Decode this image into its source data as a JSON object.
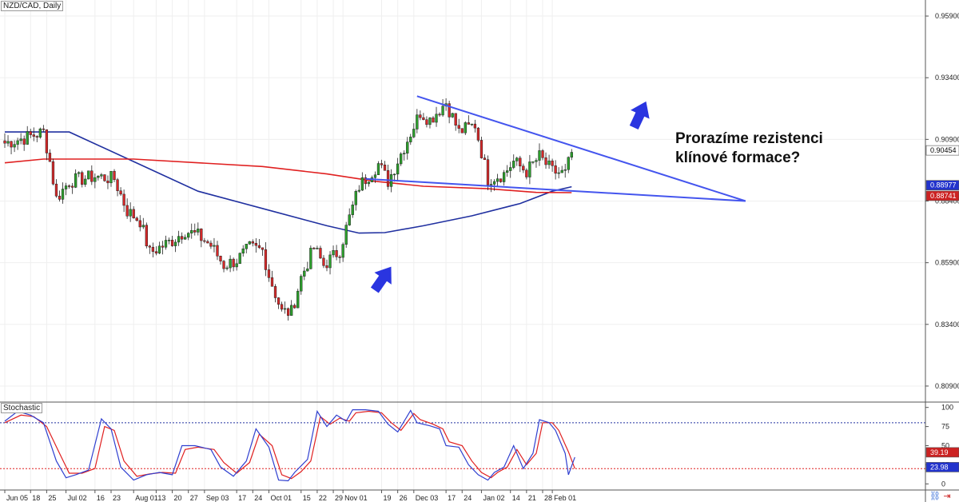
{
  "chart_data": {
    "type": "candlestick",
    "title": "NZD/CAD, Daily",
    "price_axis": {
      "ylim": [
        0.8025,
        0.9655
      ],
      "ticks": [
        "0.95900",
        "0.93400",
        "0.90900",
        "0.88400",
        "0.85900",
        "0.83400",
        "0.80900"
      ],
      "tick_values": [
        0.959,
        0.934,
        0.909,
        0.884,
        0.859,
        0.834,
        0.809
      ]
    },
    "time_axis": {
      "labels": [
        "Jun 05",
        "18",
        "25",
        "Jul 02",
        "16",
        "23",
        "Aug 01",
        "13",
        "20",
        "27",
        "Sep 03",
        "17",
        "24",
        "Oct 01",
        "15",
        "22",
        "29",
        "Nov 01",
        "19",
        "26",
        "Dec 03",
        "17",
        "24",
        "Jan 02",
        "14",
        "21",
        "28",
        "Feb 01"
      ],
      "label_bar_index": [
        0,
        8,
        13,
        19,
        28,
        33,
        40,
        47,
        52,
        57,
        62,
        72,
        77,
        82,
        92,
        97,
        102,
        105,
        117,
        122,
        127,
        137,
        142,
        148,
        157,
        162,
        167,
        170
      ]
    },
    "close_path": [
      [
        0,
        0.9075
      ],
      [
        6,
        0.9095
      ],
      [
        12,
        0.912
      ],
      [
        14,
        0.9
      ],
      [
        16,
        0.885
      ],
      [
        20,
        0.892
      ],
      [
        28,
        0.894
      ],
      [
        34,
        0.893
      ],
      [
        38,
        0.88
      ],
      [
        42,
        0.876
      ],
      [
        45,
        0.863
      ],
      [
        52,
        0.868
      ],
      [
        56,
        0.872
      ],
      [
        60,
        0.87
      ],
      [
        64,
        0.866
      ],
      [
        68,
        0.858
      ],
      [
        72,
        0.86
      ],
      [
        76,
        0.865
      ],
      [
        80,
        0.864
      ],
      [
        82,
        0.854
      ],
      [
        86,
        0.839
      ],
      [
        89,
        0.839
      ],
      [
        92,
        0.853
      ],
      [
        96,
        0.865
      ],
      [
        99,
        0.858
      ],
      [
        104,
        0.864
      ],
      [
        106,
        0.873
      ],
      [
        110,
        0.89
      ],
      [
        116,
        0.899
      ],
      [
        119,
        0.892
      ],
      [
        124,
        0.906
      ],
      [
        129,
        0.92
      ],
      [
        132,
        0.917
      ],
      [
        137,
        0.924
      ],
      [
        141,
        0.912
      ],
      [
        146,
        0.915
      ],
      [
        150,
        0.893
      ],
      [
        155,
        0.895
      ],
      [
        158,
        0.9
      ],
      [
        162,
        0.896
      ],
      [
        166,
        0.902
      ],
      [
        170,
        0.896
      ],
      [
        174,
        0.895
      ],
      [
        176,
        0.9035
      ]
    ],
    "moving_averages": [
      {
        "color": "#2030a0",
        "points": [
          [
            0,
            0.912
          ],
          [
            20,
            0.912
          ],
          [
            40,
            0.9
          ],
          [
            60,
            0.888
          ],
          [
            80,
            0.881
          ],
          [
            100,
            0.874
          ],
          [
            110,
            0.871
          ],
          [
            118,
            0.8712
          ],
          [
            130,
            0.874
          ],
          [
            145,
            0.878
          ],
          [
            160,
            0.883
          ],
          [
            170,
            0.888
          ],
          [
            176,
            0.8898
          ]
        ]
      },
      {
        "color": "#e02020",
        "points": [
          [
            0,
            0.8995
          ],
          [
            12,
            0.901
          ],
          [
            40,
            0.901
          ],
          [
            80,
            0.898
          ],
          [
            100,
            0.895
          ],
          [
            115,
            0.892
          ],
          [
            130,
            0.89
          ],
          [
            150,
            0.889
          ],
          [
            165,
            0.8875
          ],
          [
            176,
            0.8874
          ]
        ]
      }
    ],
    "price_tags": [
      {
        "label": "0.90454",
        "value": 0.90454,
        "bg": "#ffffff",
        "fg": "#000000"
      },
      {
        "label": "0.88977",
        "value": 0.88977,
        "bg": "#2233cc",
        "fg": "#ffffff"
      },
      {
        "label": "0.88741",
        "value": 0.88741,
        "bg": "#cc2222",
        "fg": "#ffffff"
      }
    ],
    "trendlines": [
      {
        "from": [
          128,
          0.9265
        ],
        "to": [
          230,
          0.884
        ]
      },
      {
        "from": [
          112,
          0.893
        ],
        "to": [
          230,
          0.884
        ]
      }
    ],
    "annotation_lines": [
      "Prorazíme rezistenci",
      "klínové formace?"
    ],
    "stochastic": {
      "title": "Stochastic",
      "ylim": [
        -8,
        107
      ],
      "ticks": [
        "100",
        "75",
        "50",
        "25",
        "0"
      ],
      "tick_values": [
        100,
        75,
        50,
        25,
        0
      ],
      "levels": [
        {
          "value": 80,
          "color": "#2030a0"
        },
        {
          "value": 20,
          "color": "#e02020"
        }
      ],
      "k_path": [
        [
          0,
          82
        ],
        [
          4,
          95
        ],
        [
          8,
          90
        ],
        [
          12,
          80
        ],
        [
          16,
          30
        ],
        [
          19,
          8
        ],
        [
          22,
          12
        ],
        [
          26,
          18
        ],
        [
          30,
          85
        ],
        [
          33,
          72
        ],
        [
          36,
          22
        ],
        [
          40,
          5
        ],
        [
          44,
          12
        ],
        [
          48,
          15
        ],
        [
          52,
          12
        ],
        [
          55,
          50
        ],
        [
          59,
          50
        ],
        [
          64,
          45
        ],
        [
          67,
          22
        ],
        [
          71,
          10
        ],
        [
          75,
          30
        ],
        [
          78,
          72
        ],
        [
          82,
          48
        ],
        [
          85,
          5
        ],
        [
          88,
          4
        ],
        [
          90,
          15
        ],
        [
          94,
          32
        ],
        [
          97,
          95
        ],
        [
          100,
          75
        ],
        [
          103,
          90
        ],
        [
          106,
          82
        ],
        [
          108,
          97
        ],
        [
          112,
          97
        ],
        [
          116,
          95
        ],
        [
          119,
          78
        ],
        [
          122,
          68
        ],
        [
          126,
          96
        ],
        [
          128,
          80
        ],
        [
          132,
          76
        ],
        [
          135,
          72
        ],
        [
          137,
          50
        ],
        [
          141,
          48
        ],
        [
          144,
          25
        ],
        [
          147,
          12
        ],
        [
          150,
          5
        ],
        [
          152,
          15
        ],
        [
          155,
          22
        ],
        [
          158,
          50
        ],
        [
          161,
          20
        ],
        [
          164,
          40
        ],
        [
          166,
          84
        ],
        [
          169,
          80
        ],
        [
          171,
          70
        ],
        [
          174,
          40
        ],
        [
          175,
          12
        ],
        [
          177,
          35
        ]
      ],
      "d_path": [
        [
          0,
          80
        ],
        [
          5,
          90
        ],
        [
          9,
          88
        ],
        [
          13,
          75
        ],
        [
          17,
          40
        ],
        [
          20,
          14
        ],
        [
          24,
          14
        ],
        [
          28,
          20
        ],
        [
          31,
          75
        ],
        [
          34,
          70
        ],
        [
          37,
          30
        ],
        [
          41,
          10
        ],
        [
          45,
          13
        ],
        [
          49,
          15
        ],
        [
          53,
          14
        ],
        [
          56,
          45
        ],
        [
          60,
          48
        ],
        [
          65,
          45
        ],
        [
          68,
          28
        ],
        [
          72,
          14
        ],
        [
          76,
          28
        ],
        [
          79,
          65
        ],
        [
          83,
          50
        ],
        [
          86,
          12
        ],
        [
          89,
          7
        ],
        [
          92,
          16
        ],
        [
          95,
          30
        ],
        [
          98,
          88
        ],
        [
          101,
          78
        ],
        [
          104,
          86
        ],
        [
          107,
          82
        ],
        [
          109,
          93
        ],
        [
          113,
          95
        ],
        [
          117,
          93
        ],
        [
          120,
          80
        ],
        [
          123,
          70
        ],
        [
          127,
          92
        ],
        [
          129,
          84
        ],
        [
          133,
          78
        ],
        [
          136,
          72
        ],
        [
          138,
          55
        ],
        [
          142,
          50
        ],
        [
          145,
          30
        ],
        [
          148,
          15
        ],
        [
          151,
          8
        ],
        [
          153,
          15
        ],
        [
          156,
          22
        ],
        [
          159,
          45
        ],
        [
          162,
          25
        ],
        [
          165,
          40
        ],
        [
          167,
          80
        ],
        [
          170,
          80
        ],
        [
          172,
          70
        ],
        [
          175,
          42
        ],
        [
          177,
          20
        ]
      ],
      "value_tags": [
        {
          "label": "39.19",
          "value": 39.19,
          "bg": "#cc2222",
          "fg": "#ffffff"
        },
        {
          "label": "23.98",
          "value": 23.98,
          "bg": "#2233cc",
          "fg": "#ffffff"
        }
      ]
    }
  },
  "toolbar": {
    "icons": [
      "link-icon",
      "arrow-right-icon"
    ]
  }
}
